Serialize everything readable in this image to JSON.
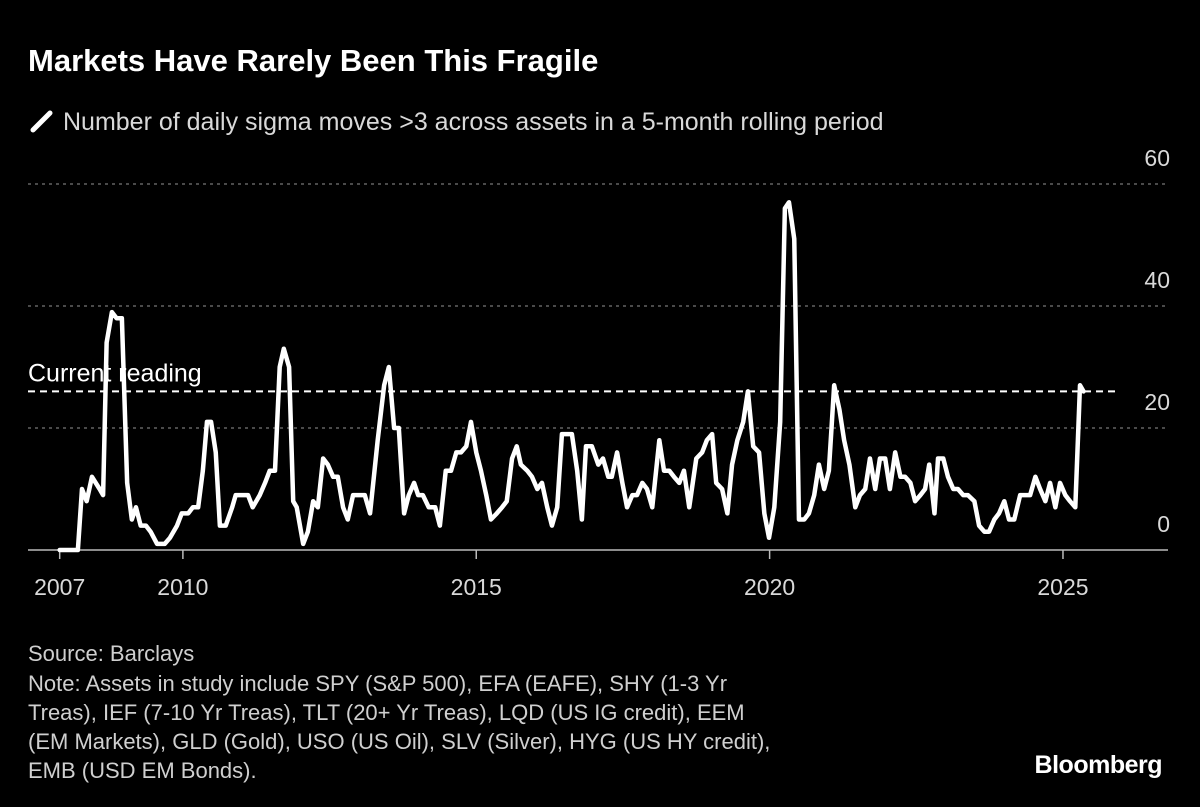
{
  "chart_data": {
    "type": "line",
    "title": "Markets Have Rarely Been This Fragile",
    "source": "Source: Barclays",
    "note_lines": [
      "Note: Assets in study include SPY (S&P 500), EFA (EAFE), SHY (1-3 Yr",
      "Treas), IEF (7-10 Yr Treas), TLT (20+ Yr Treas), LQD (US IG credit), EEM",
      "(EM Markets), GLD (Gold), USO (US Oil), SLV (Silver), HYG (US HY credit),",
      "EMB (USD EM Bonds)."
    ],
    "brand": "Bloomberg",
    "reference_line": {
      "label": "Current reading",
      "value": 26
    },
    "xlim": [
      2007.36,
      2026.79
    ],
    "xticks": [
      {
        "value": 2007.9,
        "label": "2007"
      },
      2010,
      2015,
      2020,
      2025
    ],
    "ylim": [
      0,
      60
    ],
    "yticks": [
      0,
      20,
      40,
      60
    ],
    "grid": true,
    "x": [
      2007.9,
      2008.21,
      2008.28,
      2008.36,
      2008.45,
      2008.58,
      2008.64,
      2008.7,
      2008.79,
      2008.87,
      2008.96,
      2009.05,
      2009.13,
      2009.2,
      2009.28,
      2009.37,
      2009.45,
      2009.56,
      2009.69,
      2009.78,
      2009.9,
      2009.98,
      2010.09,
      2010.17,
      2010.26,
      2010.34,
      2010.41,
      2010.48,
      2010.56,
      2010.63,
      2010.73,
      2010.84,
      2010.9,
      2011.02,
      2011.11,
      2011.19,
      2011.31,
      2011.4,
      2011.48,
      2011.57,
      2011.65,
      2011.72,
      2011.81,
      2011.88,
      2011.94,
      2012.05,
      2012.13,
      2012.22,
      2012.3,
      2012.39,
      2012.47,
      2012.56,
      2012.64,
      2012.73,
      2012.81,
      2012.9,
      2013.1,
      2013.19,
      2013.32,
      2013.43,
      2013.51,
      2013.6,
      2013.68,
      2013.77,
      2013.85,
      2013.94,
      2014.01,
      2014.09,
      2014.19,
      2014.3,
      2014.38,
      2014.48,
      2014.57,
      2014.66,
      2014.74,
      2014.83,
      2014.91,
      2015.0,
      2015.08,
      2015.17,
      2015.25,
      2015.35,
      2015.44,
      2015.52,
      2015.61,
      2015.69,
      2015.76,
      2015.87,
      2015.95,
      2016.04,
      2016.12,
      2016.21,
      2016.29,
      2016.38,
      2016.46,
      2016.55,
      2016.63,
      2016.72,
      2016.8,
      2016.87,
      2016.97,
      2017.08,
      2017.16,
      2017.25,
      2017.31,
      2017.4,
      2017.49,
      2017.57,
      2017.66,
      2017.74,
      2017.83,
      2017.91,
      2018.0,
      2018.12,
      2018.2,
      2018.29,
      2018.37,
      2018.46,
      2018.54,
      2018.63,
      2018.75,
      2018.85,
      2018.93,
      2019.02,
      2019.09,
      2019.19,
      2019.28,
      2019.36,
      2019.45,
      2019.55,
      2019.63,
      2019.72,
      2019.82,
      2019.91,
      2019.99,
      2020.08,
      2020.18,
      2020.26,
      2020.33,
      2020.42,
      2020.5,
      2020.59,
      2020.67,
      2020.76,
      2020.84,
      2020.93,
      2021.01,
      2021.1,
      2021.19,
      2021.27,
      2021.36,
      2021.46,
      2021.54,
      2021.63,
      2021.71,
      2021.8,
      2021.88,
      2021.97,
      2022.05,
      2022.14,
      2022.23,
      2022.31,
      2022.4,
      2022.48,
      2022.57,
      2022.65,
      2022.72,
      2022.81,
      2022.87,
      2022.96,
      2023.04,
      2023.13,
      2023.21,
      2023.3,
      2023.38,
      2023.49,
      2023.57,
      2023.66,
      2023.74,
      2023.83,
      2023.91,
      2024.0,
      2024.08,
      2024.17,
      2024.27,
      2024.36,
      2024.44,
      2024.53,
      2024.61,
      2024.7,
      2024.78,
      2024.87,
      2024.95,
      2025.04,
      2025.12,
      2025.21,
      2025.29,
      2025.35
    ],
    "series": [
      {
        "name": "Number of daily sigma moves >3 across assets in a 5-month rolling period",
        "color": "#ffffff",
        "values": [
          0,
          0,
          10,
          8,
          12,
          10,
          9,
          34,
          39,
          38,
          38,
          11,
          5,
          7,
          4,
          4,
          3,
          1,
          1,
          2,
          4,
          6,
          6,
          7,
          7,
          13,
          21,
          21,
          16,
          4,
          4,
          7,
          9,
          9,
          9,
          7,
          9,
          11,
          13,
          13,
          30,
          33,
          30,
          8,
          7,
          1,
          3,
          8,
          7,
          15,
          14,
          12,
          12,
          7,
          5,
          9,
          9,
          6,
          18,
          27,
          30,
          20,
          20,
          6,
          9,
          11,
          9,
          9,
          7,
          7,
          4,
          13,
          13,
          16,
          16,
          17,
          21,
          16,
          13,
          9,
          5,
          6,
          7,
          8,
          15,
          17,
          14,
          13,
          12,
          10,
          11,
          7,
          4,
          7,
          19,
          19,
          19,
          13,
          5,
          17,
          17,
          14,
          15,
          12,
          12,
          16,
          11,
          7,
          9,
          9,
          11,
          10,
          7,
          18,
          13,
          13,
          12,
          11,
          13,
          7,
          15,
          16,
          18,
          19,
          11,
          10,
          6,
          14,
          18,
          21,
          26,
          17,
          16,
          6,
          2,
          7,
          21,
          56,
          57,
          51,
          5,
          5,
          6,
          9,
          14,
          10,
          13,
          27,
          23,
          18,
          14,
          7,
          9,
          10,
          15,
          10,
          15,
          15,
          10,
          16,
          12,
          12,
          11,
          8,
          9,
          10,
          14,
          6,
          15,
          15,
          12,
          10,
          10,
          9,
          9,
          8,
          4,
          3,
          3,
          5,
          6,
          8,
          5,
          5,
          9,
          9,
          9,
          12,
          10,
          8,
          11,
          7,
          11,
          9,
          8,
          7,
          27,
          26
        ]
      }
    ]
  }
}
